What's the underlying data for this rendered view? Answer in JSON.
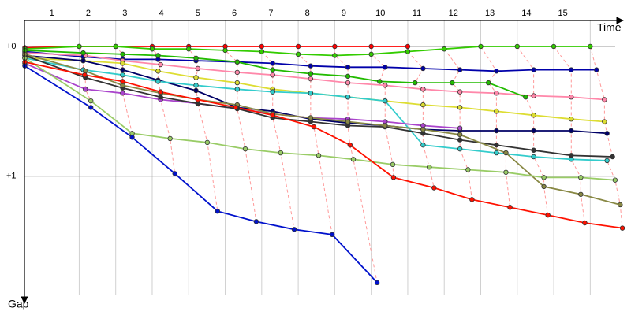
{
  "chart_data": {
    "type": "line",
    "xlabel": "Time",
    "ylabel": "Gap",
    "xlim": [
      -0.5,
      15.9
    ],
    "ylim": [
      -0.2,
      1.9
    ],
    "y_inverted": true,
    "grid": true,
    "xticks": [
      1,
      2,
      3,
      4,
      5,
      6,
      7,
      8,
      9,
      10,
      11,
      12,
      13,
      14,
      15
    ],
    "yticks": [
      {
        "value": 0,
        "label": "+0'"
      },
      {
        "value": 1,
        "label": "+1'"
      }
    ],
    "series": [
      {
        "color": "#ff0000",
        "x": [
          -0.49,
          1,
          2,
          3,
          4,
          5,
          6,
          7,
          8,
          9,
          10
        ],
        "values": [
          0.01,
          0,
          0,
          0,
          0,
          0,
          0,
          0,
          0,
          0,
          0
        ]
      },
      {
        "color": "#33cc00",
        "x": [
          -0.49,
          1,
          2,
          3,
          4,
          5,
          6,
          7,
          8,
          9,
          10,
          11,
          12,
          13,
          14,
          15
        ],
        "values": [
          0.02,
          0,
          0,
          0.02,
          0.02,
          0.03,
          0.04,
          0.06,
          0.07,
          0.06,
          0.04,
          0.02,
          0,
          0,
          0,
          0
        ]
      },
      {
        "color": "#0000aa",
        "x": [
          -0.49,
          1.11,
          2.19,
          3.16,
          4.2,
          5.33,
          6.3,
          7.34,
          8.36,
          9.38,
          10.42,
          11.43,
          12.43,
          13.45,
          14.48,
          15.17
        ],
        "values": [
          0.04,
          0.08,
          0.1,
          0.1,
          0.11,
          0.12,
          0.13,
          0.15,
          0.16,
          0.16,
          0.17,
          0.18,
          0.19,
          0.18,
          0.18,
          0.18
        ]
      },
      {
        "color": "#ff88aa",
        "x": [
          -0.49,
          1.17,
          2.19,
          3.23,
          4.25,
          5.33,
          6.3,
          7.34,
          8.36,
          9.38,
          10.42,
          11.43,
          12.43,
          13.45,
          14.48,
          15.39
        ],
        "values": [
          0.05,
          0.07,
          0.11,
          0.14,
          0.17,
          0.2,
          0.22,
          0.25,
          0.28,
          0.3,
          0.33,
          0.35,
          0.36,
          0.38,
          0.39,
          0.41
        ]
      },
      {
        "color": "#22bb00",
        "x": [
          -0.49,
          1.11,
          2.19,
          3.16,
          4.2,
          5.33,
          6.3,
          7.34,
          8.36,
          9.23,
          10.2,
          11.22,
          12.21,
          13.23
        ],
        "values": [
          0.03,
          0.05,
          0.06,
          0.07,
          0.09,
          0.12,
          0.18,
          0.21,
          0.23,
          0.27,
          0.28,
          0.28,
          0.28,
          0.39
        ]
      },
      {
        "color": "#dddd33",
        "x": [
          -0.49,
          1.11,
          2.19,
          3.16,
          4.2,
          5.33,
          6.3,
          7.34,
          8.36,
          9.38,
          10.42,
          11.43,
          12.43,
          13.45,
          14.48,
          15.39
        ],
        "values": [
          0.09,
          0.11,
          0.13,
          0.19,
          0.24,
          0.28,
          0.33,
          0.36,
          0.39,
          0.42,
          0.45,
          0.47,
          0.5,
          0.53,
          0.56,
          0.58
        ]
      },
      {
        "color": "#000066",
        "x": [
          -0.49,
          1.11,
          2.19,
          3.16,
          4.2,
          5.33,
          6.3,
          7.34,
          8.36,
          9.38,
          10.42,
          11.43,
          12.43,
          13.45,
          14.48,
          15.46
        ],
        "values": [
          0.07,
          0.11,
          0.18,
          0.26,
          0.34,
          0.47,
          0.5,
          0.56,
          0.59,
          0.61,
          0.64,
          0.65,
          0.65,
          0.65,
          0.65,
          0.67
        ]
      },
      {
        "color": "#33cccc",
        "x": [
          -0.49,
          1.11,
          2.19,
          3.16,
          4.2,
          5.33,
          6.3,
          7.34,
          8.36,
          9.38,
          10.42,
          11.43,
          12.43,
          13.45,
          14.48,
          15.46
        ],
        "values": [
          0.09,
          0.18,
          0.22,
          0.27,
          0.3,
          0.33,
          0.35,
          0.36,
          0.39,
          0.42,
          0.76,
          0.79,
          0.82,
          0.85,
          0.87,
          0.88
        ]
      },
      {
        "color": "#aa44cc",
        "x": [
          -0.49,
          1.17,
          2.19,
          3.23,
          4.25,
          5.33,
          6.3,
          7.34,
          8.36,
          9.38,
          10.42,
          11.43
        ],
        "values": [
          0.13,
          0.33,
          0.36,
          0.41,
          0.44,
          0.48,
          0.52,
          0.55,
          0.56,
          0.58,
          0.61,
          0.63
        ]
      },
      {
        "color": "#333333",
        "x": [
          -0.49,
          1.17,
          2.19,
          3.23,
          4.25,
          5.33,
          6.3,
          7.34,
          8.36,
          9.38,
          10.42,
          11.43,
          12.43,
          13.45,
          14.48,
          15.61
        ],
        "values": [
          0.07,
          0.24,
          0.32,
          0.39,
          0.44,
          0.48,
          0.55,
          0.58,
          0.61,
          0.62,
          0.67,
          0.72,
          0.76,
          0.8,
          0.84,
          0.85
        ]
      },
      {
        "color": "#888844",
        "x": [
          -0.49,
          1.17,
          2.19,
          3.23,
          4.25,
          5.33,
          6.3,
          7.34,
          8.36,
          9.38,
          10.42,
          11.43,
          12.69,
          13.73,
          14.74,
          15.82
        ],
        "values": [
          0.06,
          0.19,
          0.3,
          0.36,
          0.41,
          0.45,
          0.52,
          0.55,
          0.58,
          0.61,
          0.64,
          0.68,
          0.82,
          1.08,
          1.14,
          1.22
        ]
      },
      {
        "color": "#99cc66",
        "x": [
          -0.49,
          1.32,
          2.45,
          3.49,
          4.51,
          5.55,
          6.52,
          7.56,
          8.51,
          9.59,
          10.59,
          11.65,
          12.69,
          13.73,
          14.74,
          15.68
        ],
        "values": [
          0.09,
          0.42,
          0.67,
          0.71,
          0.74,
          0.79,
          0.82,
          0.84,
          0.87,
          0.91,
          0.93,
          0.95,
          0.97,
          1.01,
          1.01,
          1.03
        ]
      },
      {
        "color": "#ff1100",
        "x": [
          -0.49,
          1.15,
          2.19,
          3.23,
          4.25,
          5.29,
          6.3,
          7.43,
          8.42,
          9.61,
          10.72,
          11.76,
          12.8,
          13.84,
          14.85,
          15.88
        ],
        "values": [
          0.12,
          0.22,
          0.27,
          0.35,
          0.41,
          0.47,
          0.53,
          0.62,
          0.76,
          1.01,
          1.09,
          1.18,
          1.24,
          1.3,
          1.36,
          1.4
        ]
      },
      {
        "color": "#0011cc",
        "x": [
          -0.49,
          1.32,
          2.45,
          3.62,
          4.79,
          5.85,
          6.89,
          7.93,
          9.16
        ],
        "values": [
          0.15,
          0.47,
          0.7,
          0.98,
          1.27,
          1.35,
          1.41,
          1.45,
          1.82
        ]
      }
    ]
  }
}
